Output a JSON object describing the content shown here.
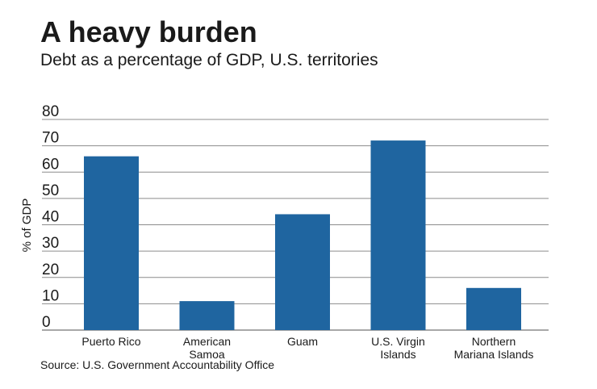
{
  "header": {
    "title": "A heavy burden",
    "subtitle": "Debt as a percentage of GDP, U.S. territories"
  },
  "footer": {
    "source": "Source: U.S. Government Accountability Office"
  },
  "colors": {
    "bar": "#1f65a0",
    "gridline": "#8c8c8c",
    "text": "#1a1a1a"
  },
  "chart_data": {
    "type": "bar",
    "title": "A heavy burden",
    "subtitle": "Debt as a percentage of GDP, U.S. territories",
    "xlabel": "",
    "ylabel": "% of GDP",
    "categories": [
      [
        "Puerto Rico"
      ],
      [
        "American",
        "Samoa"
      ],
      [
        "Guam"
      ],
      [
        "U.S. Virgin",
        "Islands"
      ],
      [
        "Northern",
        "Mariana Islands"
      ]
    ],
    "values": [
      66,
      11,
      44,
      72,
      16
    ],
    "ylim": [
      0,
      80
    ],
    "yticks": [
      0,
      10,
      20,
      30,
      40,
      50,
      60,
      70,
      80
    ],
    "grid": true,
    "legend": "none"
  }
}
